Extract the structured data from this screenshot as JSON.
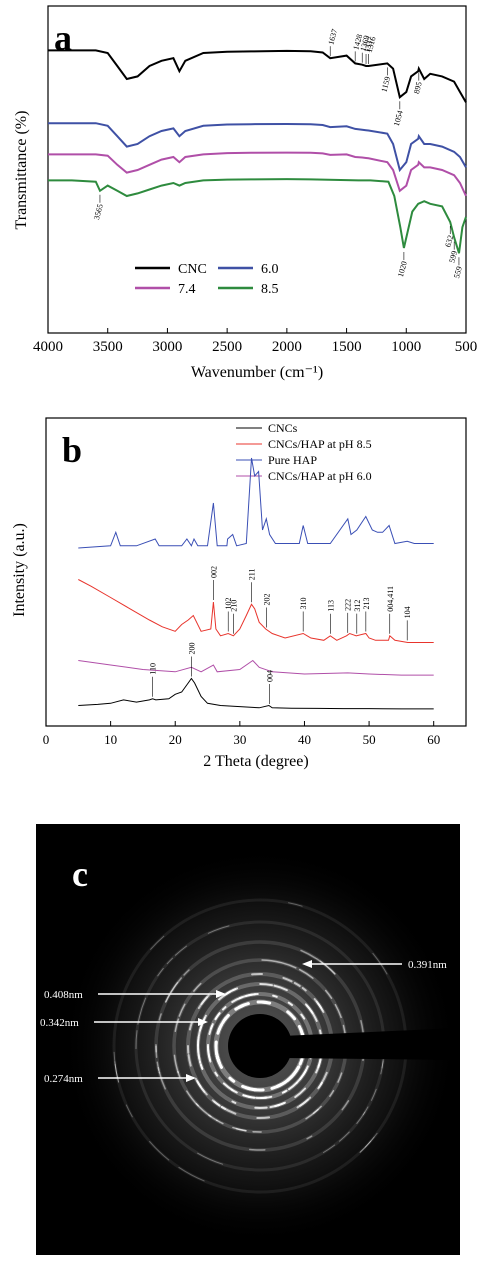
{
  "panel_a": {
    "letter": "a",
    "chart_data": {
      "type": "line",
      "xlabel": "Wavenumber (cm⁻¹)",
      "ylabel": "Transmittance (%)",
      "xlim": [
        4000,
        500
      ],
      "x_ticks": [
        4000,
        3500,
        3000,
        2500,
        2000,
        1500,
        1000,
        500
      ],
      "y_ticks_shown": false,
      "legend": [
        "CNC",
        "6.0",
        "7.4",
        "8.5"
      ],
      "legend_placement": "bottom-left",
      "series": [
        {
          "name": "CNC",
          "color": "#000000",
          "x": [
            4000,
            3800,
            3600,
            3500,
            3420,
            3340,
            3250,
            3150,
            3050,
            2950,
            2900,
            2850,
            2700,
            2500,
            2300,
            2000,
            1800,
            1700,
            1637,
            1500,
            1428,
            1369,
            1337,
            1316,
            1159,
            1110,
            1054,
            1000,
            960,
            900,
            895,
            850,
            800,
            700,
            600,
            550,
            500
          ],
          "y": [
            96,
            96,
            96,
            95,
            90,
            85,
            86,
            90,
            92,
            93,
            88,
            92,
            95,
            95.5,
            95.6,
            95.8,
            95.7,
            95.2,
            93,
            94,
            91,
            90.5,
            90,
            90,
            91,
            89,
            78,
            80,
            86,
            88,
            89,
            85,
            87,
            86,
            84,
            80,
            76
          ]
        },
        {
          "name": "6.0",
          "color": "#3f51a5",
          "x": [
            4000,
            3800,
            3600,
            3500,
            3420,
            3340,
            3250,
            3150,
            3050,
            2950,
            2900,
            2850,
            2700,
            2500,
            2300,
            2000,
            1800,
            1700,
            1637,
            1500,
            1428,
            1369,
            1337,
            1316,
            1159,
            1110,
            1054,
            1000,
            960,
            900,
            895,
            850,
            800,
            700,
            600,
            550,
            500
          ],
          "y": [
            68,
            68,
            68,
            67,
            63,
            59,
            60,
            63,
            65,
            66,
            63,
            65,
            67,
            67.5,
            67.6,
            67.7,
            67.6,
            67.3,
            66.5,
            66.8,
            65.8,
            65.5,
            65.3,
            65.2,
            64,
            60,
            50,
            53,
            60,
            62,
            63,
            60,
            60,
            59,
            57,
            55,
            51
          ]
        },
        {
          "name": "7.4",
          "color": "#b04fa8",
          "x": [
            4000,
            3800,
            3600,
            3500,
            3420,
            3340,
            3250,
            3150,
            3050,
            2950,
            2900,
            2850,
            2700,
            2500,
            2300,
            2000,
            1800,
            1700,
            1637,
            1500,
            1428,
            1369,
            1337,
            1316,
            1159,
            1110,
            1054,
            1000,
            960,
            900,
            895,
            850,
            800,
            700,
            600,
            550,
            500
          ],
          "y": [
            56,
            56,
            56,
            55.5,
            52,
            49,
            50,
            52,
            54,
            55,
            53,
            55,
            56,
            56.5,
            56.6,
            56.7,
            56.6,
            56.4,
            55.8,
            56,
            55,
            54.8,
            54.6,
            54.5,
            53,
            50,
            42,
            44,
            50,
            52,
            53,
            51,
            51,
            50,
            48,
            45,
            40
          ]
        },
        {
          "name": "8.5",
          "color": "#2e8b3e",
          "x": [
            4000,
            3800,
            3600,
            3565,
            3500,
            3420,
            3340,
            3250,
            3150,
            3050,
            2950,
            2900,
            2850,
            2700,
            2500,
            2300,
            2000,
            1800,
            1700,
            1600,
            1500,
            1400,
            1300,
            1150,
            1100,
            1050,
            1020,
            990,
            950,
            900,
            850,
            800,
            700,
            632,
            599,
            559,
            530,
            500
          ],
          "y": [
            46,
            46,
            45.5,
            42,
            44,
            42,
            40,
            41,
            42.5,
            44,
            45,
            44,
            45,
            46,
            46.3,
            46.4,
            46.5,
            46.4,
            46.3,
            46.2,
            46.1,
            46,
            46,
            45.5,
            40,
            28,
            20,
            26,
            34,
            37,
            38,
            37,
            36,
            30,
            24,
            18,
            28,
            32
          ]
        }
      ],
      "annotations": [
        {
          "text": "1637",
          "x": 1637,
          "series": "CNC"
        },
        {
          "text": "1428",
          "x": 1428,
          "series": "CNC"
        },
        {
          "text": "1369",
          "x": 1369,
          "series": "CNC"
        },
        {
          "text": "1337",
          "x": 1337,
          "series": "CNC"
        },
        {
          "text": "1316",
          "x": 1316,
          "series": "CNC"
        },
        {
          "text": "1159",
          "x": 1159,
          "series": "CNC"
        },
        {
          "text": "1054",
          "x": 1054,
          "series": "CNC"
        },
        {
          "text": "895",
          "x": 895,
          "series": "CNC"
        },
        {
          "text": "3565",
          "x": 3565,
          "series": "8.5"
        },
        {
          "text": "1020",
          "x": 1020,
          "series": "8.5"
        },
        {
          "text": "632",
          "x": 632,
          "series": "8.5"
        },
        {
          "text": "599",
          "x": 599,
          "series": "8.5"
        },
        {
          "text": "559",
          "x": 559,
          "series": "8.5"
        }
      ]
    }
  },
  "panel_b": {
    "letter": "b",
    "chart_data": {
      "type": "line",
      "xlabel": "2 Theta (degree)",
      "ylabel": "Intensity (a.u.)",
      "xlim": [
        0,
        65
      ],
      "x_ticks": [
        0,
        10,
        20,
        30,
        40,
        50,
        60
      ],
      "y_ticks_shown": false,
      "legend": [
        "CNCs",
        "CNCs/HAP at pH 8.5",
        "Pure HAP",
        "CNCs/HAP at pH 6.0"
      ],
      "legend_placement": "top-right",
      "series": [
        {
          "name": "CNCs",
          "color": "#000000",
          "x": [
            5,
            8,
            10,
            12,
            14,
            16,
            16.5,
            17,
            19,
            20,
            21,
            22,
            22.5,
            23,
            24,
            25,
            27,
            30,
            33,
            34.5,
            35,
            38,
            42,
            46,
            50,
            55,
            60
          ],
          "y": [
            2,
            2.5,
            3,
            4.5,
            3.5,
            4.5,
            5,
            4.5,
            5,
            7,
            8,
            12,
            14,
            12,
            6,
            3,
            2,
            1.5,
            1,
            2,
            1,
            0.8,
            0.7,
            0.6,
            0.6,
            0.5,
            0.5
          ]
        },
        {
          "name": "CNCs/HAP at pH 8.5",
          "color": "#e8342c",
          "x": [
            5,
            7,
            10,
            13,
            16,
            18,
            20,
            21,
            22,
            22.8,
            24,
            25.5,
            25.9,
            26.3,
            27,
            28.2,
            29,
            30,
            31,
            31.8,
            32.3,
            33,
            34,
            35,
            37,
            39.8,
            41,
            43,
            44,
            45,
            46.5,
            47,
            48,
            49.5,
            50,
            51,
            53,
            53.2,
            54,
            56,
            60
          ],
          "y": [
            58,
            55,
            50,
            45,
            40,
            37,
            35,
            38,
            40,
            42,
            35,
            36,
            48,
            36,
            33,
            34,
            33,
            36,
            42,
            47,
            45,
            39,
            36,
            34,
            32,
            34,
            32,
            31,
            33,
            31,
            33,
            34,
            33,
            34,
            32,
            31,
            31,
            33,
            31,
            30,
            30
          ]
        },
        {
          "name": "Pure HAP",
          "color": "#3a4fb5",
          "x": [
            5,
            10,
            10.8,
            11.5,
            14,
            16.9,
            17.5,
            21,
            21.8,
            22.5,
            22.9,
            23.5,
            25,
            25.9,
            26.5,
            28,
            28.1,
            28.9,
            29.5,
            31,
            31.8,
            32.3,
            32.9,
            33.5,
            34.1,
            34.6,
            35.5,
            39.2,
            39.8,
            40.5,
            42,
            44,
            46.7,
            47.2,
            48.1,
            49.5,
            50.5,
            51.3,
            52.1,
            53.1,
            54,
            55.9,
            57,
            60
          ],
          "y": [
            72,
            73,
            79,
            73,
            73,
            76,
            73,
            73,
            76,
            73,
            76,
            73,
            73,
            92,
            73,
            73,
            76,
            78,
            73,
            74,
            112,
            104,
            106,
            80,
            85,
            78,
            74,
            74,
            82,
            74,
            74,
            74,
            85,
            78,
            80,
            86,
            80,
            79,
            79,
            82,
            74,
            75,
            74,
            74
          ]
        },
        {
          "name": "CNCs/HAP at pH 6.0",
          "color": "#b04fa8",
          "x": [
            5,
            10,
            15,
            20,
            22.5,
            24,
            25.9,
            26.5,
            30,
            32,
            33,
            35,
            40,
            46.7,
            50,
            55,
            60
          ],
          "y": [
            22,
            20,
            18,
            17,
            19,
            17,
            20,
            17,
            18,
            22,
            19,
            17,
            16,
            16.5,
            16,
            15.5,
            15.5
          ]
        }
      ],
      "peak_labels": [
        "002",
        "102",
        "210",
        "211",
        "202",
        "310",
        "113",
        "222",
        "312",
        "213",
        "004,411",
        "104",
        "110",
        "200",
        "004"
      ]
    }
  },
  "panel_c": {
    "letter": "c",
    "d_spacings": [
      "0.408nm",
      "0.342nm",
      "0.274nm",
      "0.391nm"
    ]
  }
}
